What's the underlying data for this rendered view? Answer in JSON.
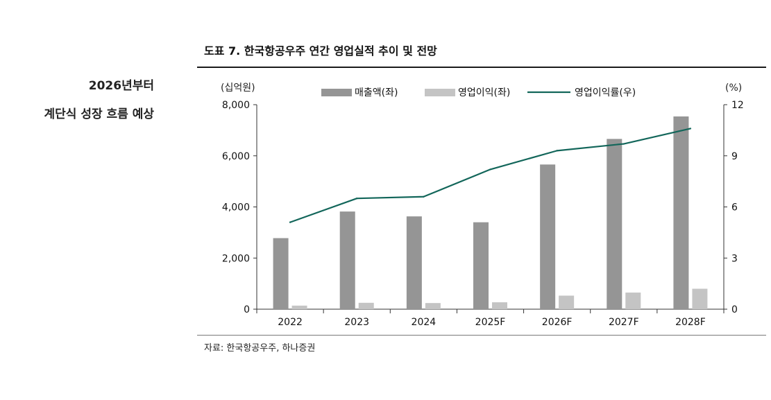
{
  "side_headline": {
    "line1": "2026년부터",
    "line2": "계단식 성장 흐름 예상"
  },
  "figure_title": "도표 7. 한국항공우주 연간 영업실적 추이 및 전망",
  "source": "자료: 한국항공우주, 하나증권",
  "chart_data": {
    "type": "bar",
    "categories": [
      "2022",
      "2023",
      "2024",
      "2025F",
      "2026F",
      "2027F",
      "2028F"
    ],
    "series": [
      {
        "name": "매출액(좌)",
        "type": "bar",
        "axis": "left",
        "color": "#959595",
        "values": [
          2780,
          3820,
          3630,
          3400,
          5660,
          6660,
          7540
        ]
      },
      {
        "name": "영업이익(좌)",
        "type": "bar",
        "axis": "left",
        "color": "#c4c4c4",
        "values": [
          140,
          250,
          240,
          270,
          530,
          650,
          800
        ]
      },
      {
        "name": "영업이익률(우)",
        "type": "line",
        "axis": "right",
        "color": "#12665a",
        "values": [
          5.1,
          6.5,
          6.6,
          8.2,
          9.3,
          9.7,
          10.6
        ]
      }
    ],
    "y_left": {
      "unit": "(십억원)",
      "ylim": [
        0,
        8000
      ],
      "ticks": [
        "8,000",
        "6,000",
        "4,000",
        "2,000",
        "0"
      ],
      "tick_values": [
        8000,
        6000,
        4000,
        2000,
        0
      ]
    },
    "y_right": {
      "unit": "(%)",
      "ylim": [
        0,
        12
      ],
      "ticks": [
        "12",
        "9",
        "6",
        "3",
        "0"
      ],
      "tick_values": [
        12,
        9,
        6,
        3,
        0
      ]
    },
    "grid": false,
    "legend": "top"
  }
}
